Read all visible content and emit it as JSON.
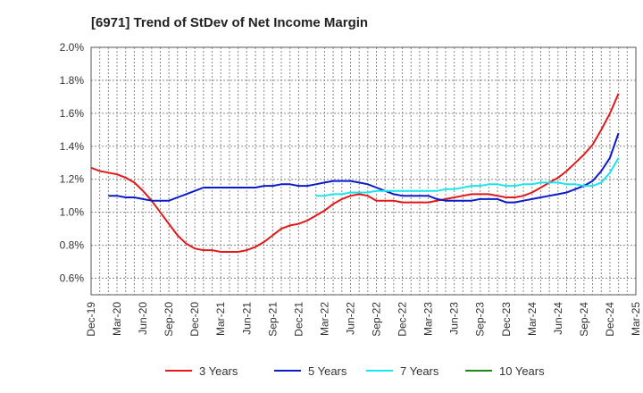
{
  "chart_data": {
    "type": "line",
    "title": "[6971]  Trend of StDev of Net Income Margin",
    "xlabel": "",
    "ylabel": "",
    "x_ticks": [
      "Dec-19",
      "Mar-20",
      "Jun-20",
      "Sep-20",
      "Dec-20",
      "Mar-21",
      "Jun-21",
      "Sep-21",
      "Dec-21",
      "Mar-22",
      "Jun-22",
      "Sep-22",
      "Dec-22",
      "Mar-23",
      "Jun-23",
      "Sep-23",
      "Dec-23",
      "Mar-24",
      "Jun-24",
      "Sep-24",
      "Dec-24",
      "Mar-25"
    ],
    "y_ticks": [
      "0.6%",
      "0.8%",
      "1.0%",
      "1.2%",
      "1.4%",
      "1.6%",
      "1.8%",
      "2.0%"
    ],
    "ylim": [
      0.5,
      2.0
    ],
    "grid": true,
    "legend_position": "bottom",
    "series": [
      {
        "name": "3 Years",
        "color": "#e0191b",
        "points": [
          [
            "Dec-19",
            1.27
          ],
          [
            "Jan-20",
            1.25
          ],
          [
            "Feb-20",
            1.24
          ],
          [
            "Mar-20",
            1.23
          ],
          [
            "Apr-20",
            1.21
          ],
          [
            "May-20",
            1.18
          ],
          [
            "Jun-20",
            1.13
          ],
          [
            "Jul-20",
            1.07
          ],
          [
            "Aug-20",
            1.0
          ],
          [
            "Sep-20",
            0.93
          ],
          [
            "Oct-20",
            0.86
          ],
          [
            "Nov-20",
            0.81
          ],
          [
            "Dec-20",
            0.78
          ],
          [
            "Jan-21",
            0.77
          ],
          [
            "Feb-21",
            0.77
          ],
          [
            "Mar-21",
            0.76
          ],
          [
            "Apr-21",
            0.76
          ],
          [
            "May-21",
            0.76
          ],
          [
            "Jun-21",
            0.77
          ],
          [
            "Jul-21",
            0.79
          ],
          [
            "Aug-21",
            0.82
          ],
          [
            "Sep-21",
            0.86
          ],
          [
            "Oct-21",
            0.9
          ],
          [
            "Nov-21",
            0.92
          ],
          [
            "Dec-21",
            0.93
          ],
          [
            "Jan-22",
            0.95
          ],
          [
            "Feb-22",
            0.98
          ],
          [
            "Mar-22",
            1.01
          ],
          [
            "Apr-22",
            1.05
          ],
          [
            "May-22",
            1.08
          ],
          [
            "Jun-22",
            1.1
          ],
          [
            "Jul-22",
            1.11
          ],
          [
            "Aug-22",
            1.1
          ],
          [
            "Sep-22",
            1.07
          ],
          [
            "Oct-22",
            1.07
          ],
          [
            "Nov-22",
            1.07
          ],
          [
            "Dec-22",
            1.06
          ],
          [
            "Jan-23",
            1.06
          ],
          [
            "Feb-23",
            1.06
          ],
          [
            "Mar-23",
            1.06
          ],
          [
            "Apr-23",
            1.07
          ],
          [
            "May-23",
            1.08
          ],
          [
            "Jun-23",
            1.09
          ],
          [
            "Jul-23",
            1.1
          ],
          [
            "Aug-23",
            1.11
          ],
          [
            "Sep-23",
            1.11
          ],
          [
            "Oct-23",
            1.11
          ],
          [
            "Nov-23",
            1.1
          ],
          [
            "Dec-23",
            1.09
          ],
          [
            "Jan-24",
            1.09
          ],
          [
            "Feb-24",
            1.1
          ],
          [
            "Mar-24",
            1.12
          ],
          [
            "Apr-24",
            1.15
          ],
          [
            "May-24",
            1.18
          ],
          [
            "Jun-24",
            1.21
          ],
          [
            "Jul-24",
            1.25
          ],
          [
            "Aug-24",
            1.3
          ],
          [
            "Sep-24",
            1.35
          ],
          [
            "Oct-24",
            1.41
          ],
          [
            "Nov-24",
            1.5
          ],
          [
            "Dec-24",
            1.6
          ],
          [
            "Jan-25",
            1.72
          ]
        ]
      },
      {
        "name": "5 Years",
        "color": "#0a1bc8",
        "points": [
          [
            "Feb-20",
            1.1
          ],
          [
            "Mar-20",
            1.1
          ],
          [
            "Apr-20",
            1.09
          ],
          [
            "May-20",
            1.09
          ],
          [
            "Jun-20",
            1.08
          ],
          [
            "Jul-20",
            1.07
          ],
          [
            "Aug-20",
            1.07
          ],
          [
            "Sep-20",
            1.07
          ],
          [
            "Oct-20",
            1.09
          ],
          [
            "Nov-20",
            1.11
          ],
          [
            "Dec-20",
            1.13
          ],
          [
            "Jan-21",
            1.15
          ],
          [
            "Feb-21",
            1.15
          ],
          [
            "Mar-21",
            1.15
          ],
          [
            "Apr-21",
            1.15
          ],
          [
            "May-21",
            1.15
          ],
          [
            "Jun-21",
            1.15
          ],
          [
            "Jul-21",
            1.15
          ],
          [
            "Aug-21",
            1.16
          ],
          [
            "Sep-21",
            1.16
          ],
          [
            "Oct-21",
            1.17
          ],
          [
            "Nov-21",
            1.17
          ],
          [
            "Dec-21",
            1.16
          ],
          [
            "Jan-22",
            1.16
          ],
          [
            "Feb-22",
            1.17
          ],
          [
            "Mar-22",
            1.18
          ],
          [
            "Apr-22",
            1.19
          ],
          [
            "May-22",
            1.19
          ],
          [
            "Jun-22",
            1.19
          ],
          [
            "Jul-22",
            1.18
          ],
          [
            "Aug-22",
            1.17
          ],
          [
            "Sep-22",
            1.15
          ],
          [
            "Oct-22",
            1.13
          ],
          [
            "Nov-22",
            1.11
          ],
          [
            "Dec-22",
            1.1
          ],
          [
            "Jan-23",
            1.1
          ],
          [
            "Feb-23",
            1.1
          ],
          [
            "Mar-23",
            1.1
          ],
          [
            "Apr-23",
            1.08
          ],
          [
            "May-23",
            1.07
          ],
          [
            "Jun-23",
            1.07
          ],
          [
            "Jul-23",
            1.07
          ],
          [
            "Aug-23",
            1.07
          ],
          [
            "Sep-23",
            1.08
          ],
          [
            "Oct-23",
            1.08
          ],
          [
            "Nov-23",
            1.08
          ],
          [
            "Dec-23",
            1.06
          ],
          [
            "Jan-24",
            1.06
          ],
          [
            "Feb-24",
            1.07
          ],
          [
            "Mar-24",
            1.08
          ],
          [
            "Apr-24",
            1.09
          ],
          [
            "May-24",
            1.1
          ],
          [
            "Jun-24",
            1.11
          ],
          [
            "Jul-24",
            1.12
          ],
          [
            "Aug-24",
            1.14
          ],
          [
            "Sep-24",
            1.16
          ],
          [
            "Oct-24",
            1.19
          ],
          [
            "Nov-24",
            1.25
          ],
          [
            "Dec-24",
            1.33
          ],
          [
            "Jan-25",
            1.48
          ]
        ]
      },
      {
        "name": "7 Years",
        "color": "#19e6ec",
        "points": [
          [
            "Feb-22",
            1.1
          ],
          [
            "Mar-22",
            1.1
          ],
          [
            "Apr-22",
            1.11
          ],
          [
            "May-22",
            1.11
          ],
          [
            "Jun-22",
            1.12
          ],
          [
            "Jul-22",
            1.12
          ],
          [
            "Aug-22",
            1.12
          ],
          [
            "Sep-22",
            1.13
          ],
          [
            "Oct-22",
            1.13
          ],
          [
            "Nov-22",
            1.13
          ],
          [
            "Dec-22",
            1.13
          ],
          [
            "Jan-23",
            1.13
          ],
          [
            "Feb-23",
            1.13
          ],
          [
            "Mar-23",
            1.13
          ],
          [
            "Apr-23",
            1.13
          ],
          [
            "May-23",
            1.14
          ],
          [
            "Jun-23",
            1.14
          ],
          [
            "Jul-23",
            1.15
          ],
          [
            "Aug-23",
            1.16
          ],
          [
            "Sep-23",
            1.16
          ],
          [
            "Oct-23",
            1.17
          ],
          [
            "Nov-23",
            1.17
          ],
          [
            "Dec-23",
            1.16
          ],
          [
            "Jan-24",
            1.16
          ],
          [
            "Feb-24",
            1.17
          ],
          [
            "Mar-24",
            1.17
          ],
          [
            "Apr-24",
            1.18
          ],
          [
            "May-24",
            1.18
          ],
          [
            "Jun-24",
            1.18
          ],
          [
            "Jul-24",
            1.17
          ],
          [
            "Aug-24",
            1.17
          ],
          [
            "Sep-24",
            1.16
          ],
          [
            "Oct-24",
            1.16
          ],
          [
            "Nov-24",
            1.18
          ],
          [
            "Dec-24",
            1.24
          ],
          [
            "Jan-25",
            1.33
          ]
        ]
      },
      {
        "name": "10 Years",
        "color": "#1a8a1a",
        "points": []
      }
    ]
  }
}
